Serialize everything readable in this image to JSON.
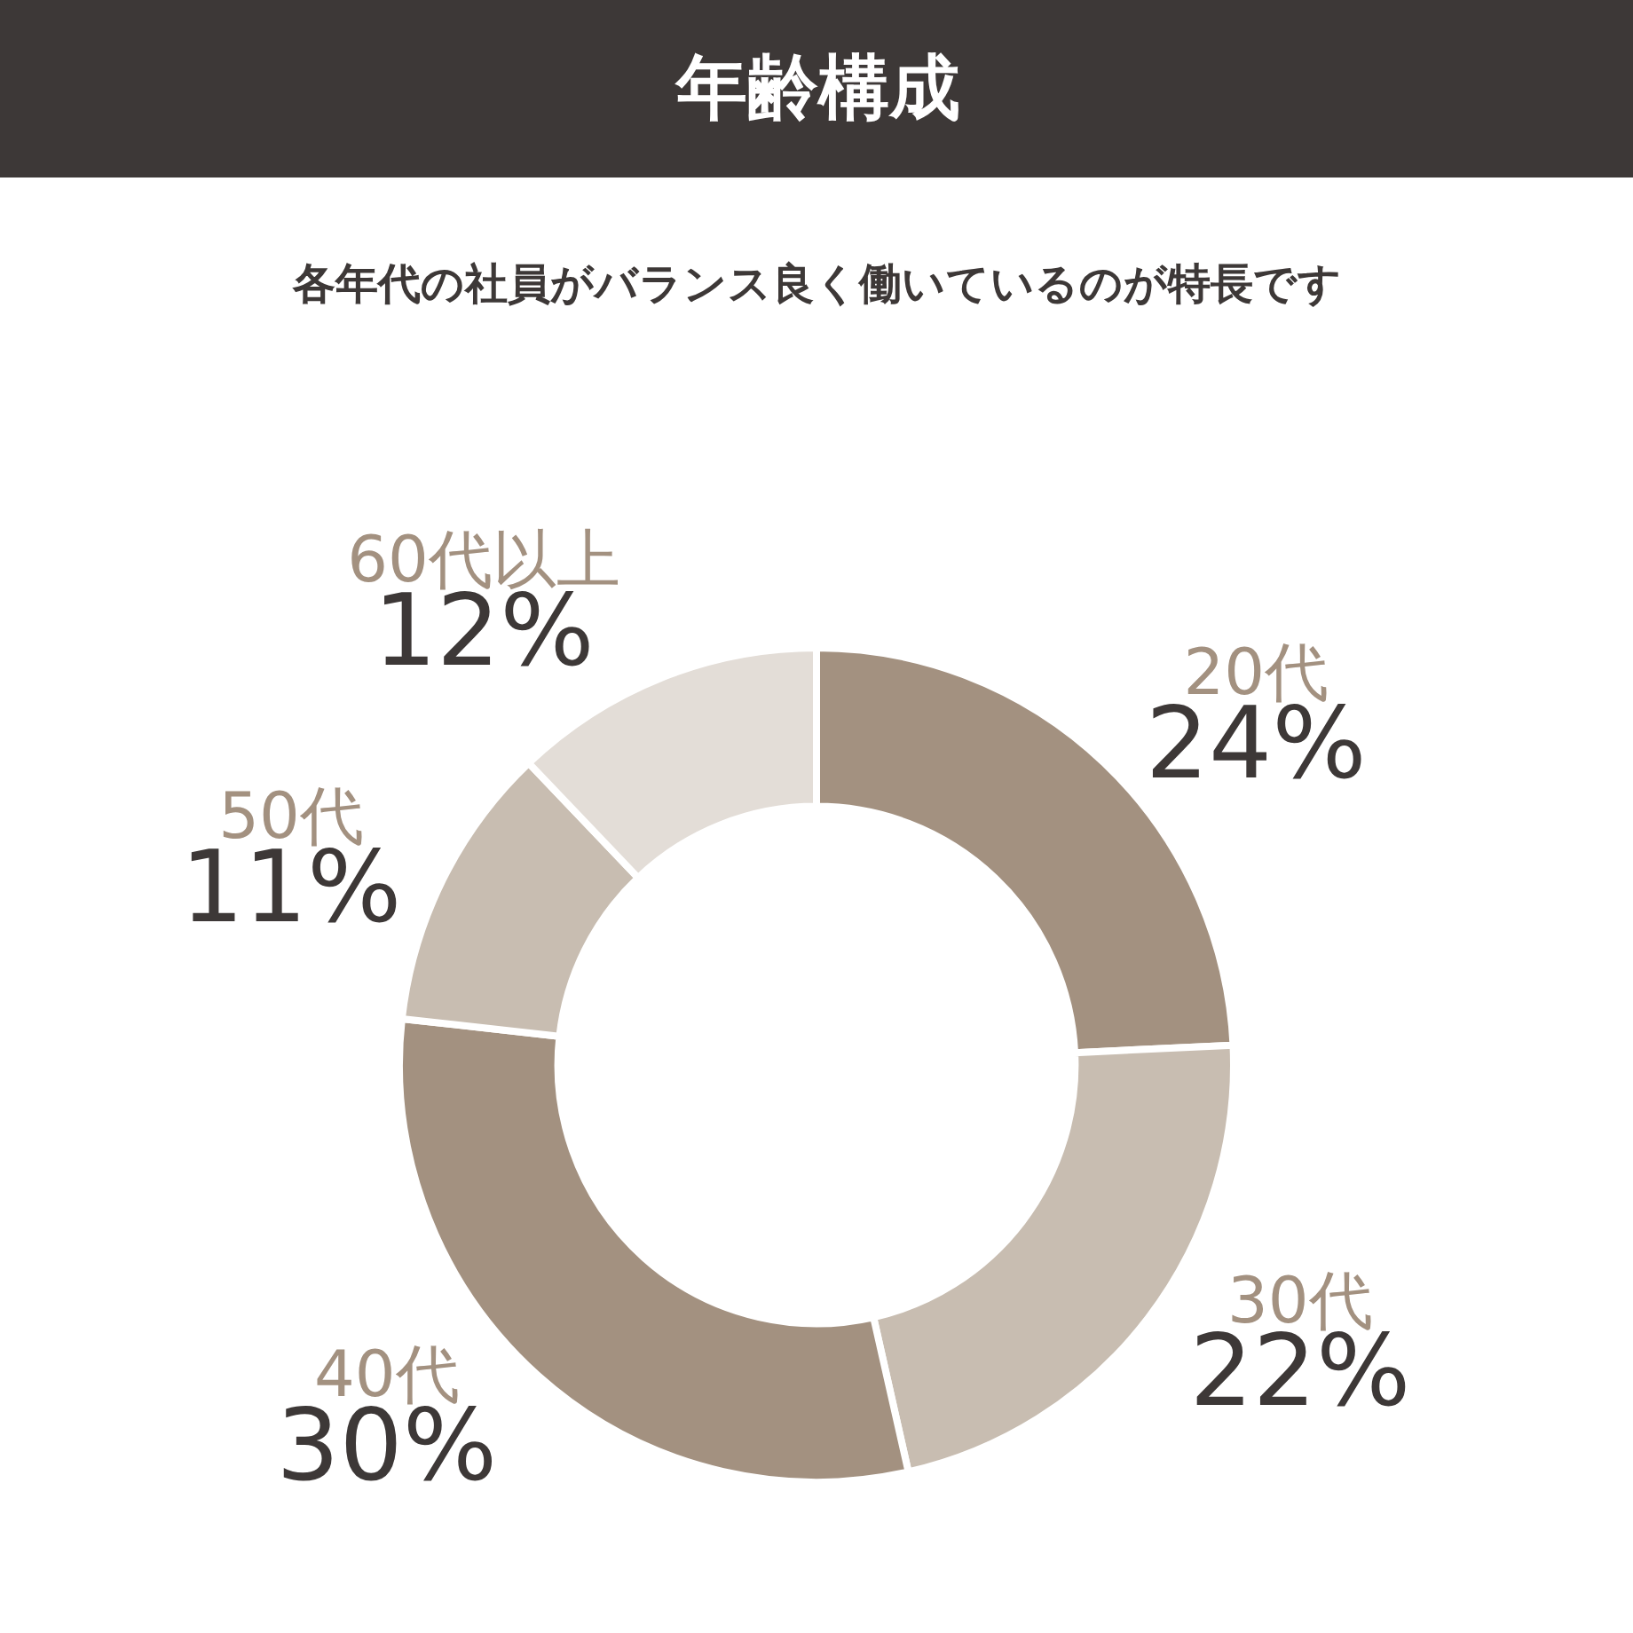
{
  "chart_data": {
    "type": "donut",
    "title": "年齢構成",
    "subtitle": "各年代の社員がバランス良く働いているのが特長です",
    "categories": [
      "20代",
      "30代",
      "40代",
      "50代",
      "60代以上"
    ],
    "values": [
      24,
      22,
      30,
      11,
      12
    ],
    "value_labels": [
      "24%",
      "22%",
      "30%",
      "11%",
      "12%"
    ],
    "colors": [
      "#a39180",
      "#c8bdb1",
      "#a39180",
      "#c8bdb1",
      "#e3ddd7"
    ],
    "legend": false
  }
}
